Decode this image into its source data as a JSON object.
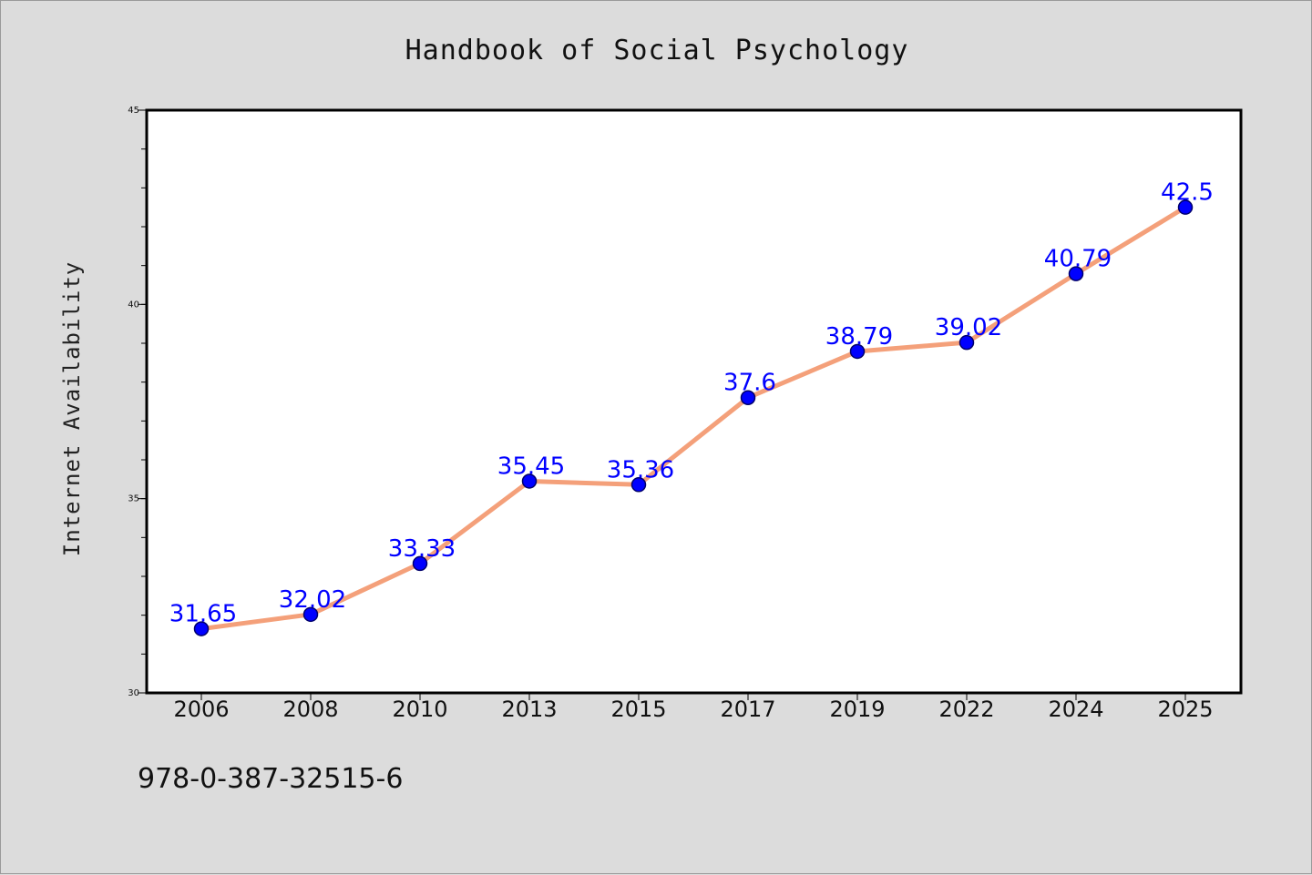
{
  "chart_data": {
    "type": "line",
    "title": "Handbook of Social Psychology",
    "ylabel": "Internet Availability",
    "xlabel": "",
    "categories": [
      "2006",
      "2008",
      "2010",
      "2013",
      "2015",
      "2017",
      "2019",
      "2022",
      "2024",
      "2025"
    ],
    "series": [
      {
        "values": [
          31.65,
          32.02,
          33.33,
          35.45,
          35.36,
          37.6,
          38.79,
          39.02,
          40.79,
          42.5
        ],
        "data_labels": [
          "31.65",
          "32.02",
          "33.33",
          "35.45",
          "35.36",
          "37.6",
          "38.79",
          "39.02",
          "40.79",
          "42.5"
        ]
      }
    ],
    "ylim": [
      30,
      45
    ],
    "yticks": [
      "30",
      "35",
      "40",
      "45"
    ],
    "grid": false,
    "legend": "none",
    "colors": {
      "line": "#f4a07a",
      "marker": "#0000ff",
      "marker_edge": "#00006b",
      "data_label": "#0000ff",
      "plot_bg": "#ffffff",
      "page_bg": "#dcdcdc"
    }
  },
  "footer": {
    "isbn": "978-0-387-32515-6"
  }
}
